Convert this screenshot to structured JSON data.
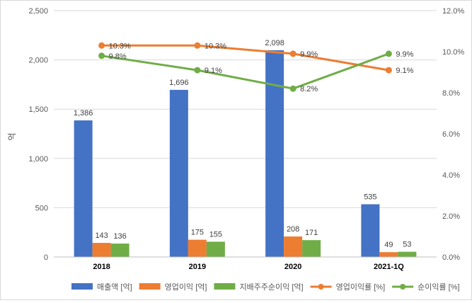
{
  "chart_data": {
    "type": "bar",
    "title": "",
    "xlabel": "",
    "ylabel": "억",
    "categories": [
      "2018",
      "2019",
      "2020",
      "2021-1Q"
    ],
    "ylim": [
      0,
      2500
    ],
    "yticks": [
      0,
      500,
      1000,
      1500,
      2000,
      2500
    ],
    "ytick_labels": [
      "0",
      "500",
      "1,000",
      "1,500",
      "2,000",
      "2,500"
    ],
    "y2lim": [
      0,
      12
    ],
    "y2ticks": [
      0,
      2,
      4,
      6,
      8,
      10,
      12
    ],
    "y2tick_labels": [
      "0.0%",
      "2.0%",
      "4.0%",
      "6.0%",
      "8.0%",
      "10.0%",
      "12.0%"
    ],
    "grid": true,
    "legend_position": "bottom",
    "series": [
      {
        "name": "매출액 [억]",
        "kind": "bar",
        "axis": "left",
        "color": "#4472C4",
        "values": [
          1386,
          1696,
          2098,
          535
        ],
        "labels": [
          "1,386",
          "1,696",
          "2,098",
          "535"
        ]
      },
      {
        "name": "영업이익 [억]",
        "kind": "bar",
        "axis": "left",
        "color": "#ED7D31",
        "values": [
          143,
          175,
          208,
          49
        ],
        "labels": [
          "143",
          "175",
          "208",
          "49"
        ]
      },
      {
        "name": "지배주주순이익 [억]",
        "kind": "bar",
        "axis": "left",
        "color": "#70AD47",
        "values": [
          136,
          155,
          171,
          53
        ],
        "labels": [
          "136",
          "155",
          "171",
          "53"
        ]
      },
      {
        "name": "영업이익률 [%]",
        "kind": "line",
        "axis": "right",
        "color": "#ED7D31",
        "values": [
          10.3,
          10.3,
          9.9,
          9.1
        ],
        "labels": [
          "10.3%",
          "10.3%",
          "9.9%",
          "9.1%"
        ]
      },
      {
        "name": "순이익률 [%]",
        "kind": "line",
        "axis": "right",
        "color": "#70AD47",
        "values": [
          9.8,
          9.1,
          8.2,
          9.9
        ],
        "labels": [
          "9.8%",
          "9.1%",
          "8.2%",
          "9.9%"
        ]
      }
    ]
  }
}
